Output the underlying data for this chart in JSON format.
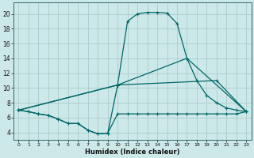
{
  "xlabel": "Humidex (Indice chaleur)",
  "bg_color": "#cde8e8",
  "grid_color": "#aacccc",
  "line_color": "#006666",
  "xlim": [
    -0.5,
    23.5
  ],
  "ylim": [
    3.0,
    21.5
  ],
  "yticks": [
    4,
    6,
    8,
    10,
    12,
    14,
    16,
    18,
    20
  ],
  "line1_x": [
    0,
    1,
    2,
    3,
    4,
    5,
    6,
    7,
    8,
    9,
    10,
    11,
    12,
    13,
    14,
    15,
    16,
    17,
    18,
    19,
    20,
    21,
    22,
    23
  ],
  "line1_y": [
    7.0,
    6.8,
    6.5,
    6.3,
    5.8,
    5.2,
    5.2,
    4.3,
    3.8,
    3.9,
    10.4,
    19.0,
    20.0,
    20.2,
    20.2,
    20.1,
    18.7,
    14.0,
    11.0,
    9.0,
    8.0,
    7.3,
    7.0,
    6.8
  ],
  "line2_x": [
    0,
    1,
    2,
    3,
    4,
    5,
    6,
    7,
    8,
    9,
    10,
    11,
    12,
    13,
    14,
    15,
    16,
    17,
    18,
    19,
    20,
    21,
    22,
    23
  ],
  "line2_y": [
    7.0,
    6.8,
    6.5,
    6.3,
    5.8,
    5.2,
    5.2,
    4.3,
    3.8,
    3.9,
    6.5,
    6.5,
    6.5,
    6.5,
    6.5,
    6.5,
    6.5,
    6.5,
    6.5,
    6.5,
    6.5,
    6.5,
    6.5,
    6.8
  ],
  "line3_x": [
    0,
    10,
    17,
    23
  ],
  "line3_y": [
    7.0,
    10.4,
    14.0,
    6.8
  ],
  "line4_x": [
    0,
    10,
    20,
    23
  ],
  "line4_y": [
    7.0,
    10.4,
    11.0,
    6.8
  ]
}
